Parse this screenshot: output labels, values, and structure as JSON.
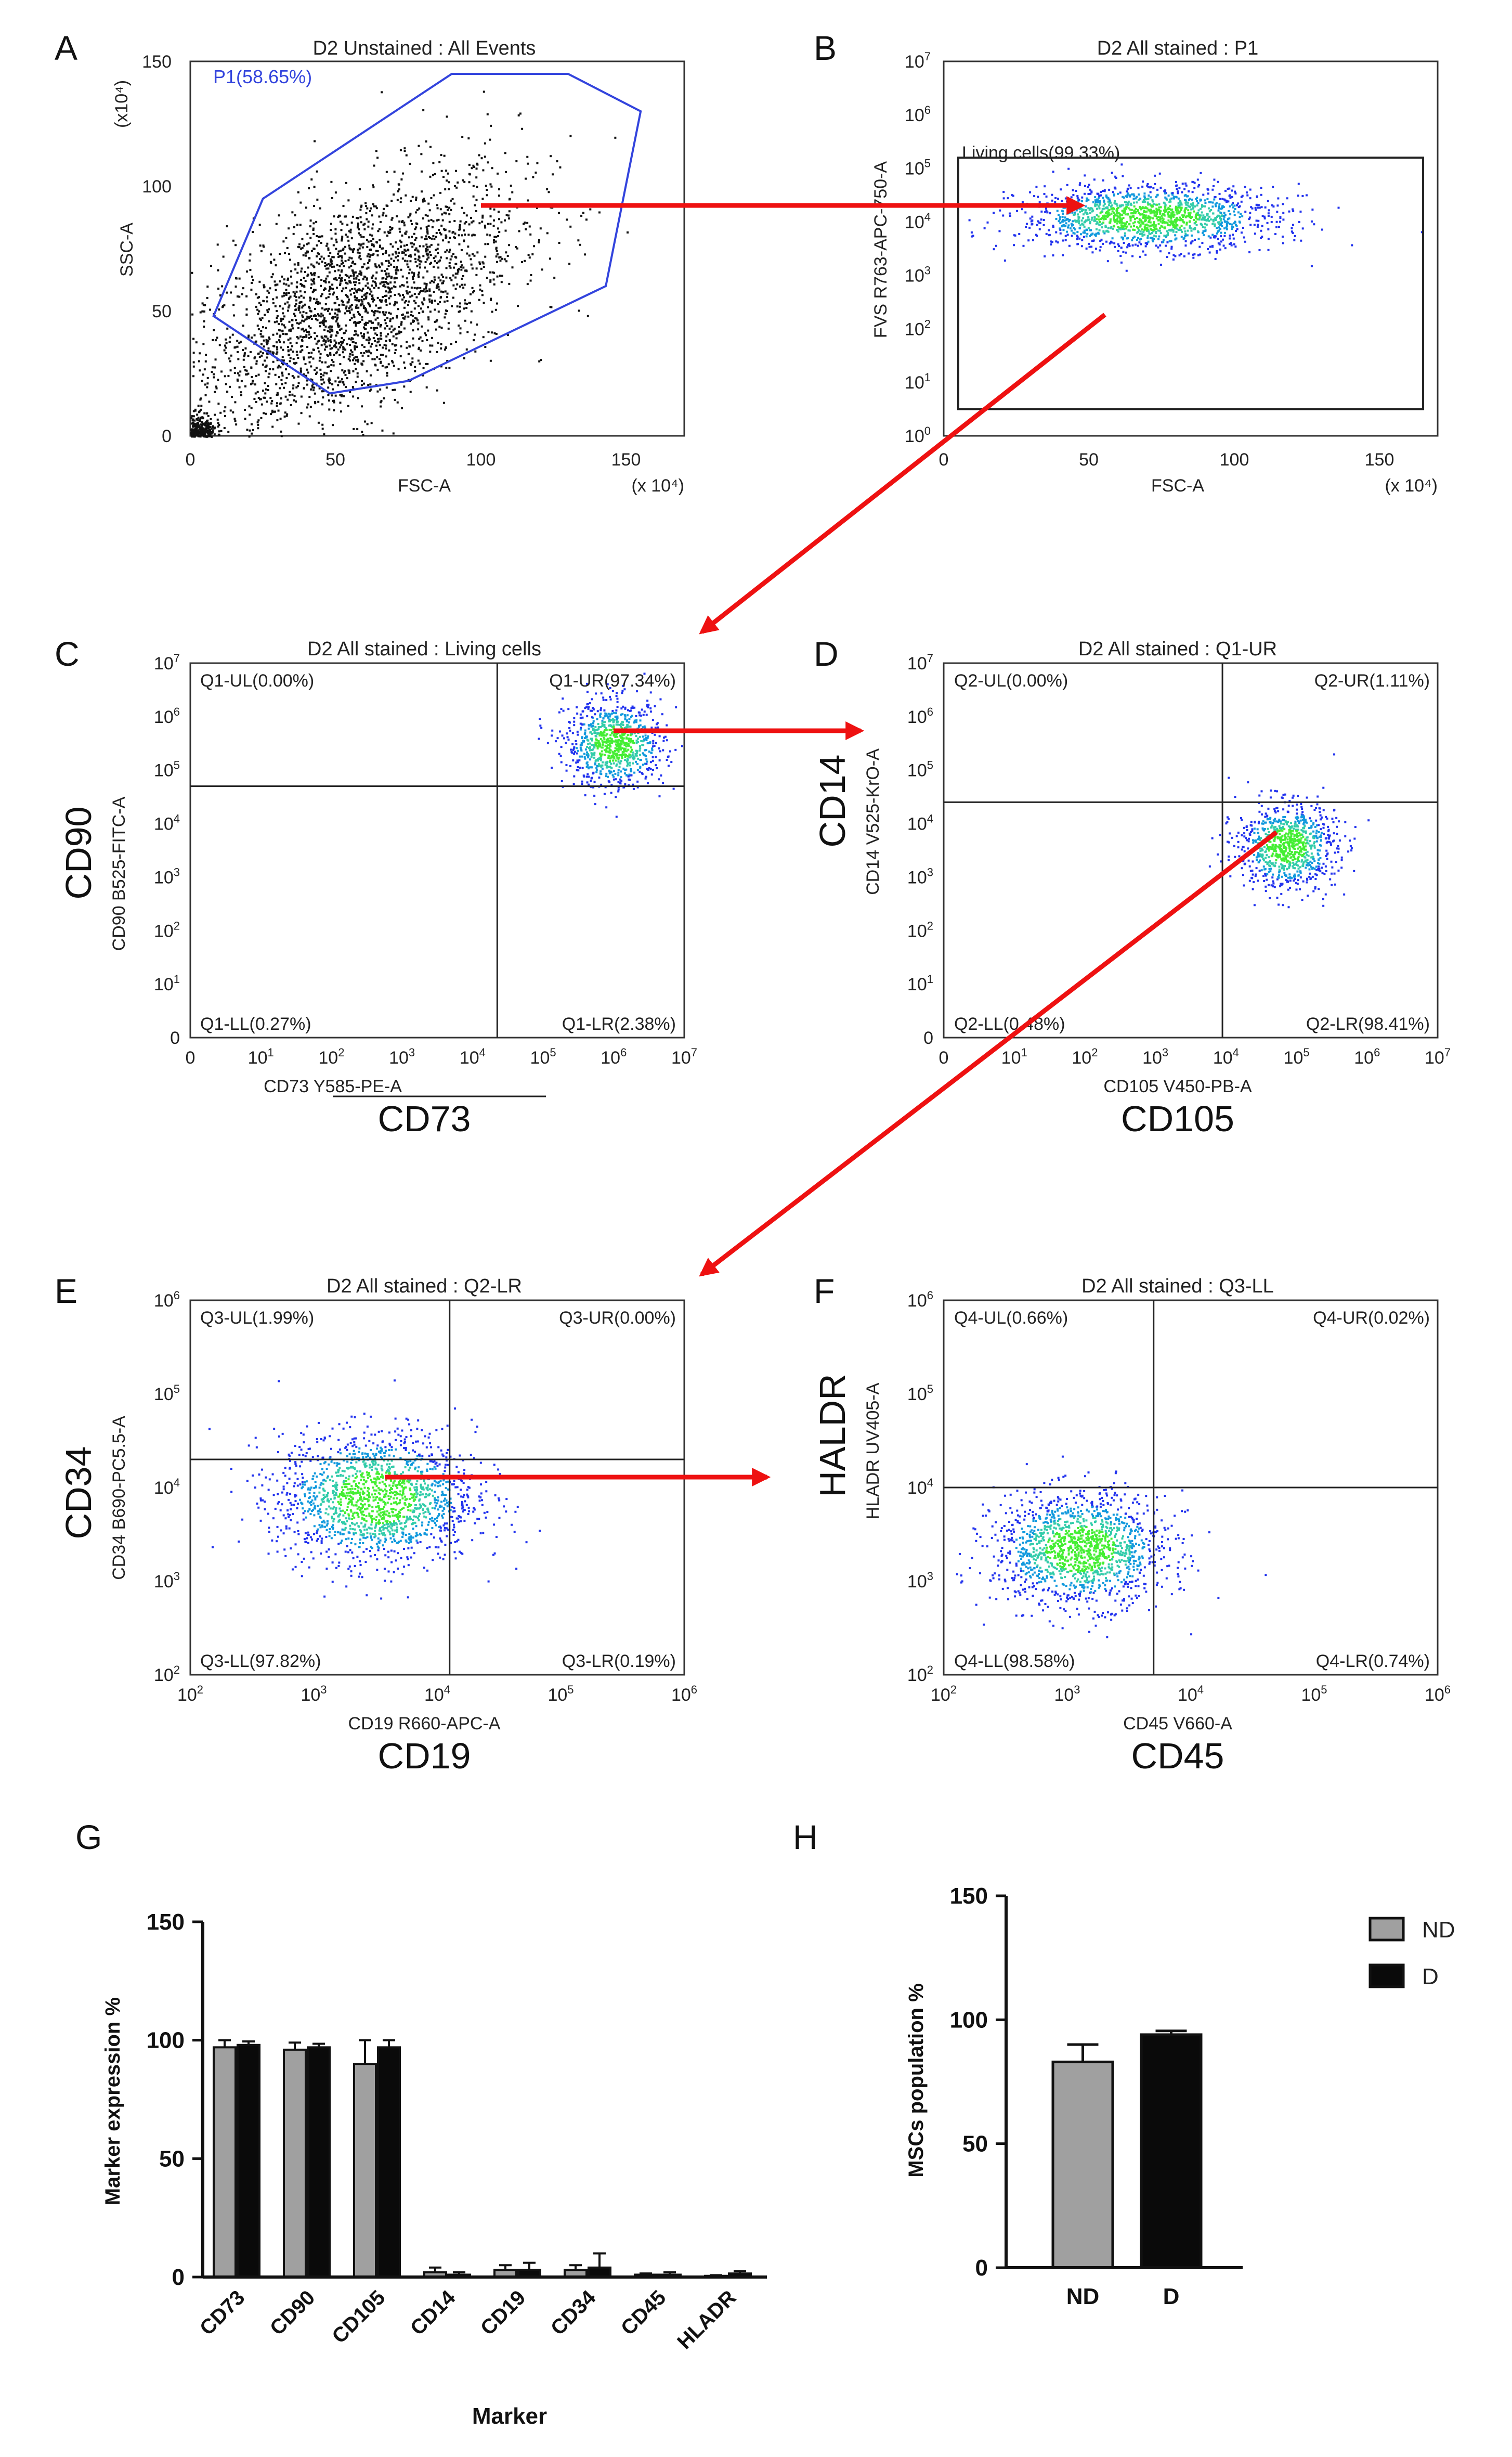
{
  "panels": {
    "A": {
      "letter": "A",
      "title": "D2 Unstained : All Events",
      "xlabel": "FSC-A",
      "ylabel": "SSC-A",
      "xunit": "(x 10⁴)",
      "yunit": "(x10⁴)",
      "xticks": [
        "0",
        "50",
        "100",
        "150"
      ],
      "yticks": [
        "0",
        "50",
        "100",
        "150"
      ],
      "gate": "P1(58.65%)"
    },
    "B": {
      "letter": "B",
      "title": "D2 All stained : P1",
      "xlabel": "FSC-A",
      "ylabel": "FVS R763-APC-750-A",
      "xunit": "(x 10⁴)",
      "xticks": [
        "0",
        "50",
        "100",
        "150"
      ],
      "gate": "Living cells(99.33%)"
    },
    "C": {
      "letter": "C",
      "title": "D2 All stained : Living cells",
      "xlabel": "CD73 Y585-PE-A",
      "ylabel": "CD90 B525-FITC-A",
      "big_x": "CD73",
      "big_y": "CD90",
      "quads": [
        "Q1-UL(0.00%)",
        "Q1-UR(97.34%)",
        "Q1-LL(0.27%)",
        "Q1-LR(2.38%)"
      ]
    },
    "D": {
      "letter": "D",
      "title": "D2 All stained : Q1-UR",
      "xlabel": "CD105 V450-PB-A",
      "ylabel": "CD14 V525-KrO-A",
      "big_x": "CD105",
      "big_y": "CD14",
      "quads": [
        "Q2-UL(0.00%)",
        "Q2-UR(1.11%)",
        "Q2-LL(0.48%)",
        "Q2-LR(98.41%)"
      ]
    },
    "E": {
      "letter": "E",
      "title": "D2 All stained : Q2-LR",
      "xlabel": "CD19 R660-APC-A",
      "ylabel": "CD34 B690-PC5.5-A",
      "big_x": "CD19",
      "big_y": "CD34",
      "quads": [
        "Q3-UL(1.99%)",
        "Q3-UR(0.00%)",
        "Q3-LL(97.82%)",
        "Q3-LR(0.19%)"
      ]
    },
    "F": {
      "letter": "F",
      "title": "D2 All stained : Q3-LL",
      "xlabel": "CD45 V660-A",
      "ylabel": "HLADR UV405-A",
      "big_x": "CD45",
      "big_y": "HALDR",
      "quads": [
        "Q4-UL(0.66%)",
        "Q4-UR(0.02%)",
        "Q4-LL(98.58%)",
        "Q4-LR(0.74%)"
      ]
    }
  },
  "chart_data": [
    {
      "type": "scatter",
      "panel": "A",
      "title": "D2 Unstained : All Events",
      "xlabel": "FSC-A",
      "ylabel": "SSC-A",
      "xlim": [
        0,
        170
      ],
      "ylim": [
        0,
        150
      ],
      "scale": "x10^4",
      "gate": {
        "name": "P1",
        "percent": 58.65,
        "polygon": [
          [
            25,
            95
          ],
          [
            90,
            145
          ],
          [
            130,
            145
          ],
          [
            155,
            130
          ],
          [
            143,
            60
          ],
          [
            75,
            22
          ],
          [
            48,
            17
          ],
          [
            8,
            48
          ]
        ]
      },
      "cloud": {
        "center": [
          55,
          52
        ],
        "spread": [
          32,
          28
        ]
      }
    },
    {
      "type": "scatter",
      "panel": "B",
      "title": "D2 All stained : P1",
      "xlabel": "FSC-A",
      "ylabel": "FVS R763-APC-750-A",
      "xlim": [
        0,
        170
      ],
      "ylim_log10": [
        0,
        7
      ],
      "gate": {
        "name": "Living cells",
        "percent": 99.33,
        "rect": [
          [
            5,
            0.5
          ],
          [
            165,
            5.2
          ]
        ]
      },
      "cloud": {
        "center": [
          70,
          4.1
        ],
        "spread": [
          22,
          0.3
        ]
      }
    },
    {
      "type": "scatter",
      "panel": "C",
      "title": "D2 All stained : Living cells",
      "xlabel": "CD73 Y585-PE-A",
      "ylabel": "CD90 B525-FITC-A",
      "xlim_log10": [
        0,
        7
      ],
      "ylim_log10": [
        0,
        7
      ],
      "quadrant_split": [
        4.35,
        4.7
      ],
      "quadrants": {
        "UL": 0.0,
        "UR": 97.34,
        "LL": 0.27,
        "LR": 2.38
      },
      "cloud": {
        "center": [
          6.0,
          5.5
        ],
        "spread": [
          0.35,
          0.4
        ]
      }
    },
    {
      "type": "scatter",
      "panel": "D",
      "title": "D2 All stained : Q1-UR",
      "xlabel": "CD105 V450-PB-A",
      "ylabel": "CD14 V525-KrO-A",
      "xlim_log10": [
        0,
        7
      ],
      "ylim_log10": [
        0,
        7
      ],
      "quadrant_split": [
        3.95,
        4.4
      ],
      "quadrants": {
        "UL": 0.0,
        "UR": 1.11,
        "LL": 0.48,
        "LR": 98.41
      },
      "cloud": {
        "center": [
          4.85,
          3.6
        ],
        "spread": [
          0.35,
          0.4
        ]
      }
    },
    {
      "type": "scatter",
      "panel": "E",
      "title": "D2 All stained : Q2-LR",
      "xlabel": "CD19 R660-APC-A",
      "ylabel": "CD34 B690-PC5.5-A",
      "xlim_log10": [
        2,
        6
      ],
      "ylim_log10": [
        2,
        6
      ],
      "quadrant_split": [
        4.1,
        4.3
      ],
      "quadrants": {
        "UL": 1.99,
        "UR": 0.0,
        "LL": 97.82,
        "LR": 0.19
      },
      "cloud": {
        "center": [
          3.5,
          3.9
        ],
        "spread": [
          0.4,
          0.35
        ]
      }
    },
    {
      "type": "scatter",
      "panel": "F",
      "title": "D2 All stained : Q3-LL",
      "xlabel": "CD45 V660-A",
      "ylabel": "HLADR UV405-A",
      "xlim_log10": [
        2,
        6
      ],
      "ylim_log10": [
        2,
        6
      ],
      "quadrant_split": [
        3.7,
        4.0
      ],
      "quadrants": {
        "UL": 0.66,
        "UR": 0.02,
        "LL": 98.58,
        "LR": 0.74
      },
      "cloud": {
        "center": [
          3.1,
          3.35
        ],
        "spread": [
          0.35,
          0.3
        ]
      }
    },
    {
      "type": "bar",
      "panel": "G",
      "letter": "G",
      "categories": [
        "CD73",
        "CD90",
        "CD105",
        "CD14",
        "CD19",
        "CD34",
        "CD45",
        "HLADR"
      ],
      "series": [
        {
          "name": "ND",
          "color": "#a0a0a0",
          "values": [
            97,
            96,
            90,
            2,
            3,
            3,
            1,
            0.5
          ],
          "errors": [
            3,
            3,
            10,
            2,
            2,
            2,
            0.5,
            0.3
          ]
        },
        {
          "name": "D",
          "color": "#0a0a0a",
          "values": [
            98,
            97,
            97,
            1,
            3,
            4,
            1,
            1.5
          ],
          "errors": [
            1.5,
            1.5,
            3,
            1,
            3,
            6,
            1,
            1
          ]
        }
      ],
      "xlabel": "Marker",
      "ylabel": "Marker expression %",
      "ylim": [
        0,
        150
      ],
      "yticks": [
        "0",
        "50",
        "100",
        "150"
      ]
    },
    {
      "type": "bar",
      "panel": "H",
      "letter": "H",
      "categories": [
        "ND",
        "D"
      ],
      "values": [
        83,
        94
      ],
      "errors": [
        7,
        1.5
      ],
      "colors": [
        "#a0a0a0",
        "#0a0a0a"
      ],
      "ylabel": "MSCs population %",
      "ylim": [
        0,
        150
      ],
      "yticks": [
        "0",
        "50",
        "100",
        "150"
      ],
      "legend": [
        "ND",
        "D"
      ]
    }
  ]
}
